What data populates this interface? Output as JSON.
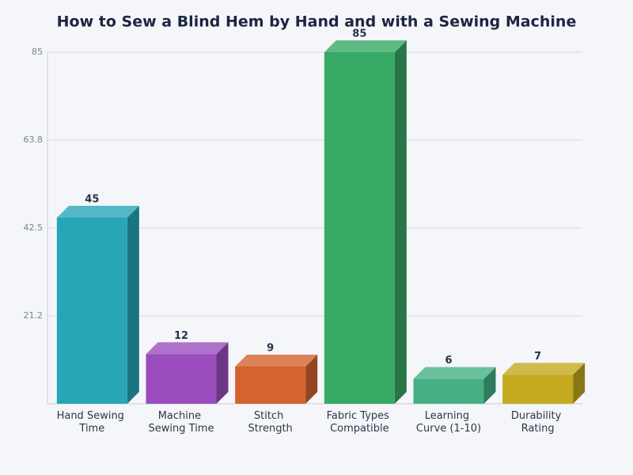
{
  "chart_data": {
    "type": "bar3d",
    "title": "How to Sew a Blind Hem by Hand and with a Sewing Machine",
    "categories": [
      "Hand Sewing Time",
      "Machine Sewing Time",
      "Stitch Strength",
      "Fabric Types Compatible",
      "Learning Curve (1-10)",
      "Durability Rating"
    ],
    "values": [
      45,
      12,
      9,
      85,
      6,
      7
    ],
    "colors": [
      "#27a6b8",
      "#9b4dbd",
      "#d4632e",
      "#38a964",
      "#45b083",
      "#c4a91e"
    ],
    "ylim": [
      0,
      85
    ],
    "yticks": [
      {
        "value": 21.25,
        "label": "21.2"
      },
      42.5,
      {
        "value": 63.75,
        "label": "63.8"
      },
      85
    ],
    "grid": true
  }
}
